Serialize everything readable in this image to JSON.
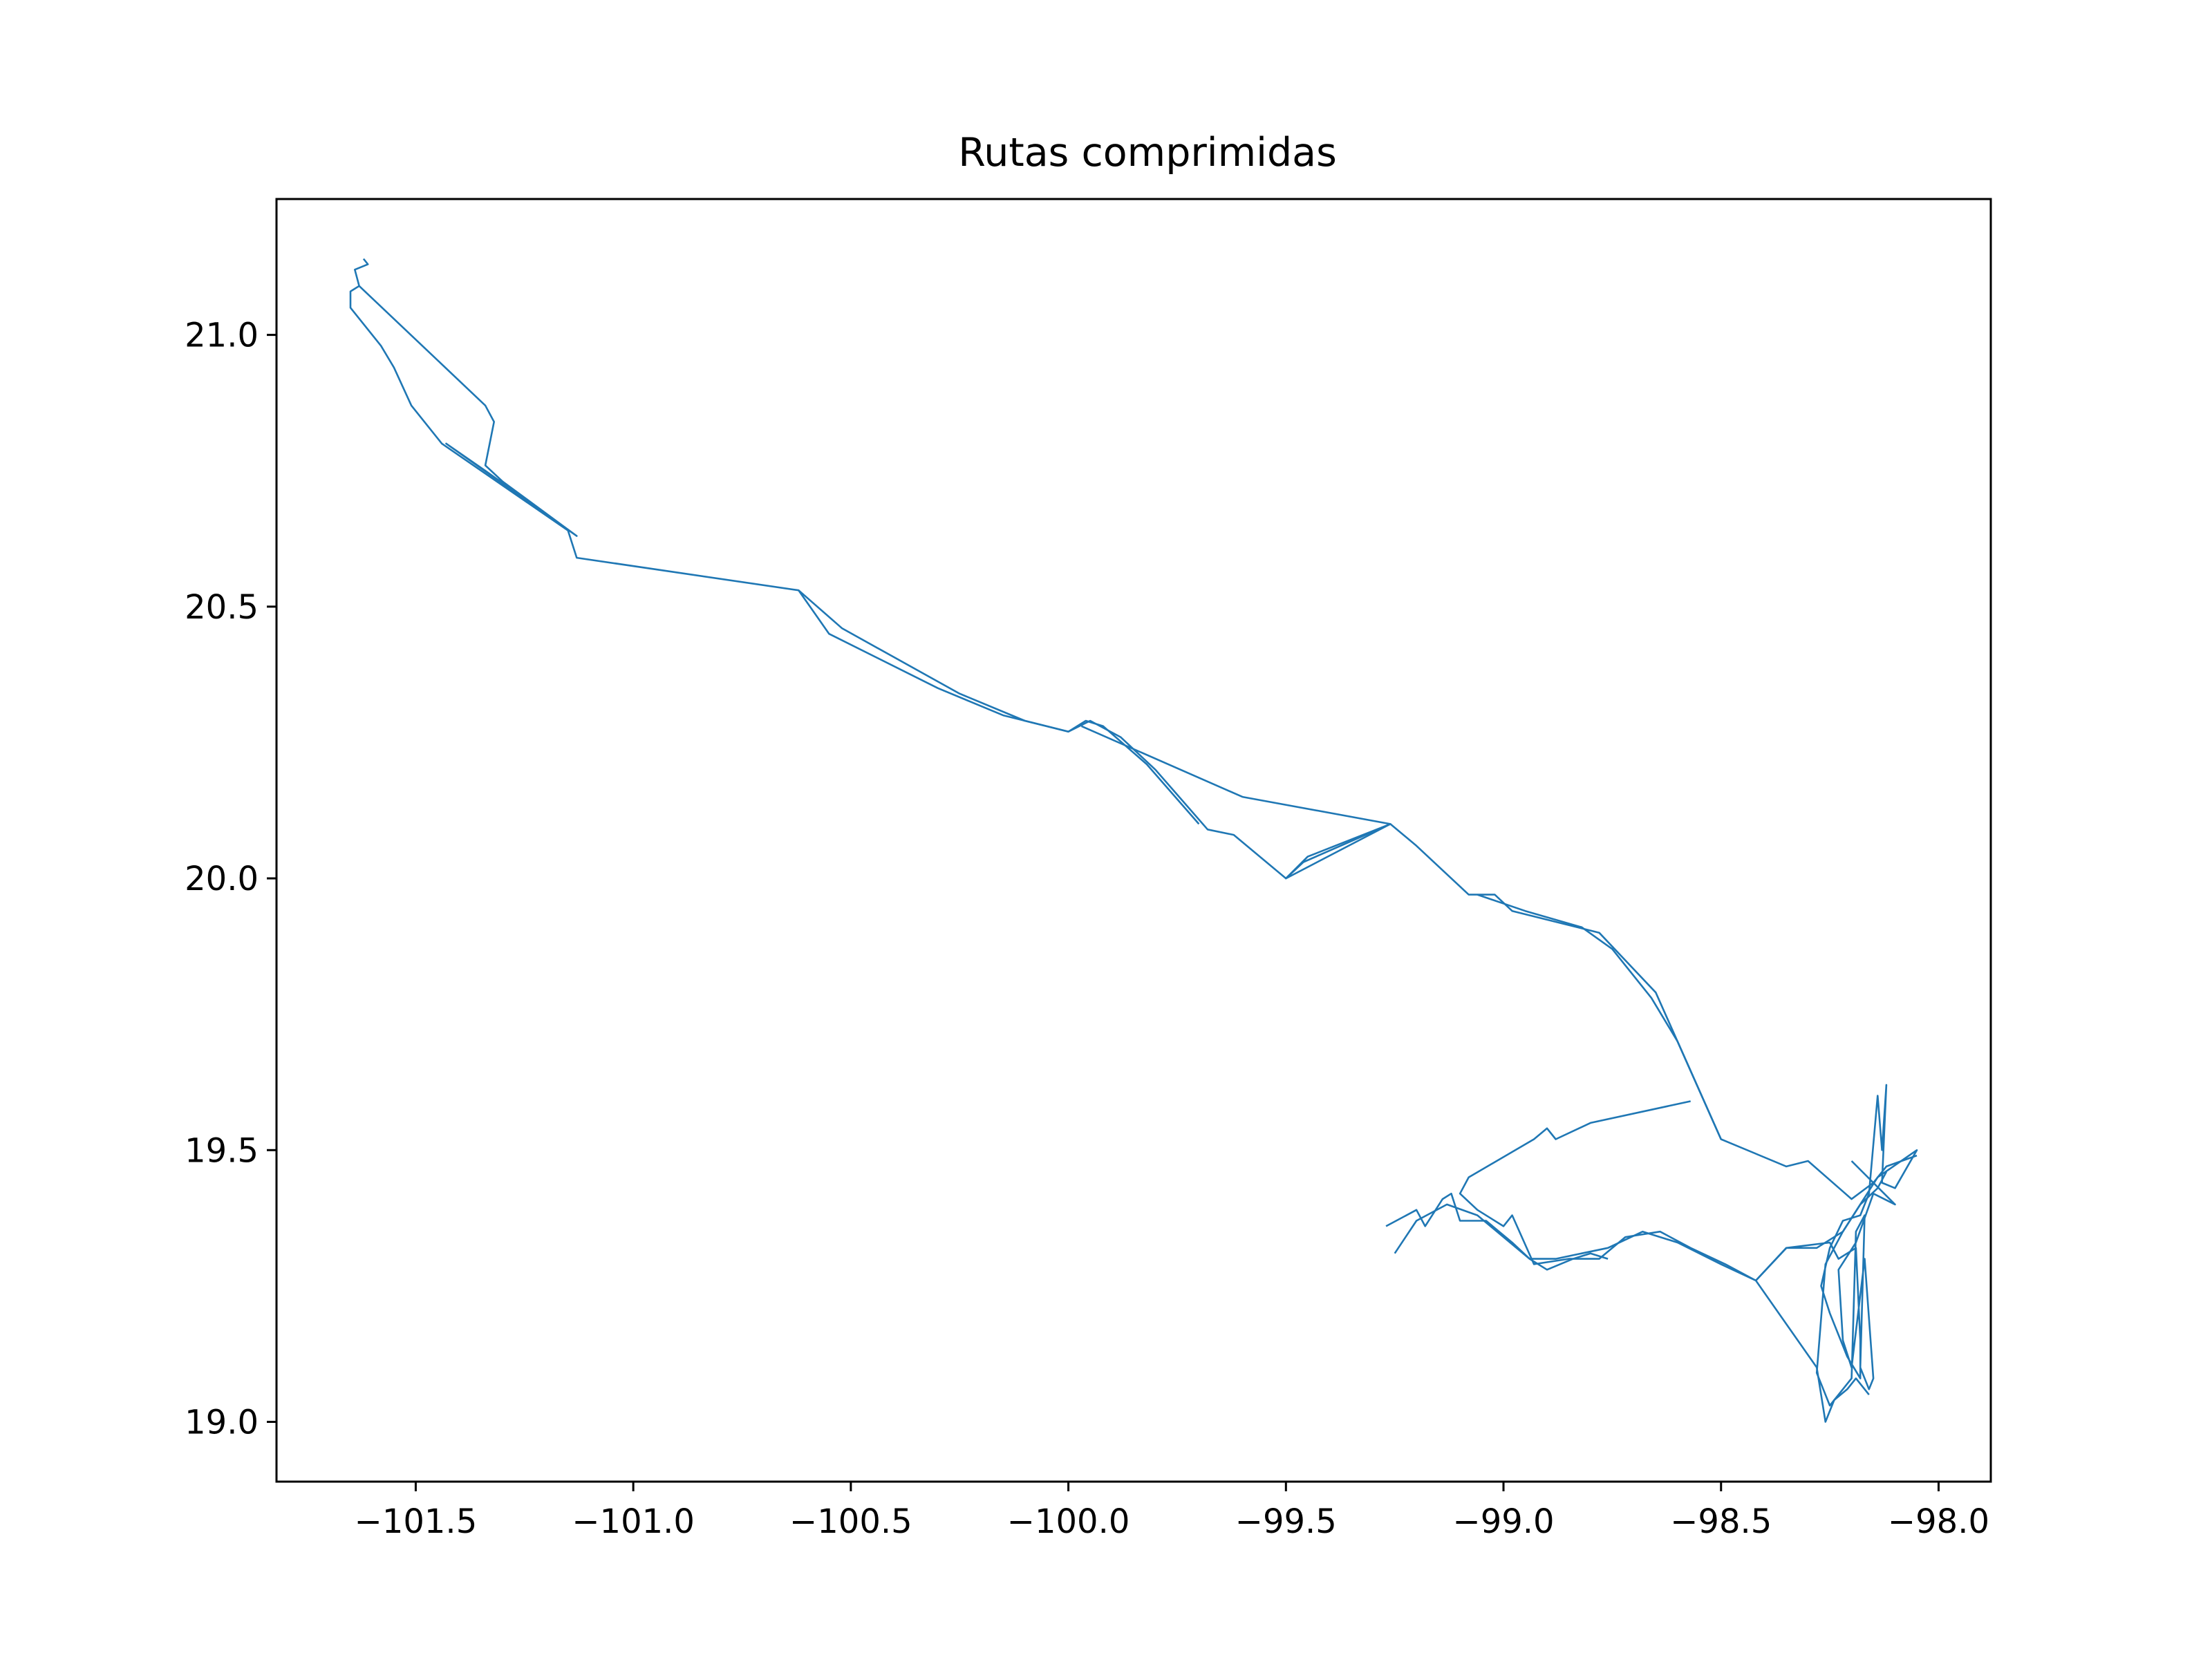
{
  "chart_data": {
    "type": "line",
    "title": "Rutas comprimidas",
    "xlabel": "",
    "ylabel": "",
    "xlim": [
      -101.82,
      -97.88
    ],
    "ylim": [
      18.89,
      21.25
    ],
    "x_ticks": [
      {
        "value": -101.5,
        "label": "−101.5"
      },
      {
        "value": -101.0,
        "label": "−101.0"
      },
      {
        "value": -100.5,
        "label": "−100.5"
      },
      {
        "value": -100.0,
        "label": "−100.0"
      },
      {
        "value": -99.5,
        "label": "−99.5"
      },
      {
        "value": -99.0,
        "label": "−99.0"
      },
      {
        "value": -98.5,
        "label": "−98.5"
      },
      {
        "value": -98.0,
        "label": "−98.0"
      }
    ],
    "y_ticks": [
      {
        "value": 19.0,
        "label": "19.0"
      },
      {
        "value": 19.5,
        "label": "19.5"
      },
      {
        "value": 20.0,
        "label": "20.0"
      },
      {
        "value": 20.5,
        "label": "20.5"
      },
      {
        "value": 21.0,
        "label": "21.0"
      }
    ],
    "grid": false,
    "legend": "none",
    "line_color": "#1f77b4",
    "series": [
      {
        "points": [
          [
            -101.62,
            21.14
          ],
          [
            -101.61,
            21.13
          ],
          [
            -101.64,
            21.12
          ],
          [
            -101.63,
            21.09
          ],
          [
            -101.65,
            21.08
          ],
          [
            -101.65,
            21.05
          ],
          [
            -101.58,
            20.98
          ],
          [
            -101.55,
            20.94
          ],
          [
            -101.51,
            20.87
          ],
          [
            -101.44,
            20.8
          ],
          [
            -101.15,
            20.64
          ],
          [
            -101.13,
            20.59
          ],
          [
            -100.62,
            20.53
          ],
          [
            -100.52,
            20.46
          ],
          [
            -100.25,
            20.34
          ],
          [
            -100.1,
            20.29
          ],
          [
            -100.0,
            20.27
          ],
          [
            -99.95,
            20.29
          ],
          [
            -99.88,
            20.26
          ],
          [
            -99.8,
            20.2
          ],
          [
            -99.68,
            20.09
          ],
          [
            -99.62,
            20.08
          ],
          [
            -99.5,
            20.0
          ],
          [
            -99.46,
            20.03
          ],
          [
            -99.26,
            20.1
          ],
          [
            -99.2,
            20.06
          ],
          [
            -99.08,
            19.97
          ],
          [
            -99.02,
            19.97
          ],
          [
            -98.98,
            19.94
          ],
          [
            -98.78,
            19.9
          ],
          [
            -98.65,
            19.79
          ],
          [
            -98.5,
            19.52
          ],
          [
            -98.35,
            19.47
          ],
          [
            -98.3,
            19.48
          ],
          [
            -98.2,
            19.41
          ],
          [
            -98.15,
            19.44
          ],
          [
            -98.12,
            19.47
          ],
          [
            -98.05,
            19.49
          ]
        ]
      },
      {
        "points": [
          [
            -101.63,
            21.09
          ],
          [
            -101.34,
            20.87
          ],
          [
            -101.32,
            20.84
          ],
          [
            -101.34,
            20.76
          ],
          [
            -101.3,
            20.73
          ],
          [
            -101.13,
            20.63
          ],
          [
            -101.43,
            20.8
          ],
          [
            -101.34,
            20.75
          ],
          [
            -101.13,
            20.63
          ]
        ]
      },
      {
        "points": [
          [
            -100.62,
            20.53
          ],
          [
            -100.55,
            20.45
          ],
          [
            -100.3,
            20.35
          ],
          [
            -100.15,
            20.3
          ],
          [
            -100.0,
            20.27
          ],
          [
            -99.96,
            20.29
          ],
          [
            -99.92,
            20.28
          ],
          [
            -99.82,
            20.21
          ],
          [
            -99.7,
            20.1
          ]
        ]
      },
      {
        "points": [
          [
            -99.97,
            20.28
          ],
          [
            -99.6,
            20.15
          ],
          [
            -99.26,
            20.1
          ],
          [
            -99.5,
            20.0
          ],
          [
            -99.45,
            20.04
          ],
          [
            -99.26,
            20.1
          ]
        ]
      },
      {
        "points": [
          [
            -99.06,
            19.97
          ],
          [
            -98.95,
            19.94
          ],
          [
            -98.82,
            19.91
          ],
          [
            -98.75,
            19.87
          ],
          [
            -98.66,
            19.78
          ],
          [
            -98.6,
            19.7
          ],
          [
            -98.5,
            19.52
          ]
        ]
      },
      {
        "points": [
          [
            -98.57,
            19.59
          ],
          [
            -98.8,
            19.55
          ],
          [
            -98.88,
            19.52
          ],
          [
            -98.9,
            19.54
          ],
          [
            -98.93,
            19.52
          ],
          [
            -99.08,
            19.45
          ],
          [
            -99.1,
            19.42
          ],
          [
            -99.06,
            19.39
          ],
          [
            -99.0,
            19.36
          ],
          [
            -98.98,
            19.38
          ],
          [
            -98.93,
            19.29
          ],
          [
            -98.85,
            19.3
          ],
          [
            -98.78,
            19.3
          ],
          [
            -98.72,
            19.34
          ],
          [
            -98.64,
            19.35
          ],
          [
            -98.57,
            19.32
          ],
          [
            -98.49,
            19.29
          ],
          [
            -98.42,
            19.26
          ],
          [
            -98.35,
            19.32
          ],
          [
            -98.28,
            19.32
          ],
          [
            -98.22,
            19.35
          ],
          [
            -98.18,
            19.4
          ],
          [
            -98.14,
            19.43
          ],
          [
            -98.12,
            19.46
          ]
        ]
      },
      {
        "points": [
          [
            -99.27,
            19.36
          ],
          [
            -99.2,
            19.39
          ],
          [
            -99.18,
            19.36
          ],
          [
            -99.14,
            19.41
          ],
          [
            -99.12,
            19.42
          ],
          [
            -99.1,
            19.37
          ],
          [
            -99.04,
            19.37
          ],
          [
            -98.98,
            19.33
          ],
          [
            -98.94,
            19.3
          ],
          [
            -98.88,
            19.3
          ],
          [
            -98.82,
            19.31
          ],
          [
            -98.76,
            19.32
          ],
          [
            -98.68,
            19.35
          ],
          [
            -98.6,
            19.33
          ],
          [
            -98.5,
            19.29
          ],
          [
            -98.42,
            19.26
          ],
          [
            -98.28,
            19.1
          ],
          [
            -98.26,
            19.0
          ],
          [
            -98.24,
            19.04
          ],
          [
            -98.21,
            19.06
          ],
          [
            -98.19,
            19.08
          ],
          [
            -98.16,
            19.05
          ]
        ]
      },
      {
        "points": [
          [
            -99.25,
            19.31
          ],
          [
            -99.2,
            19.37
          ],
          [
            -99.13,
            19.4
          ],
          [
            -99.06,
            19.38
          ],
          [
            -98.94,
            19.3
          ],
          [
            -98.9,
            19.28
          ],
          [
            -98.84,
            19.3
          ],
          [
            -98.8,
            19.31
          ],
          [
            -98.76,
            19.3
          ]
        ]
      },
      {
        "points": [
          [
            -98.42,
            19.26
          ],
          [
            -98.35,
            19.32
          ],
          [
            -98.25,
            19.33
          ],
          [
            -98.23,
            19.3
          ],
          [
            -98.19,
            19.32
          ],
          [
            -98.18,
            19.15
          ],
          [
            -98.18,
            19.08
          ],
          [
            -98.21,
            19.12
          ],
          [
            -98.25,
            19.2
          ],
          [
            -98.27,
            19.25
          ],
          [
            -98.25,
            19.32
          ],
          [
            -98.22,
            19.37
          ],
          [
            -98.18,
            19.38
          ],
          [
            -98.16,
            19.42
          ],
          [
            -98.14,
            19.6
          ],
          [
            -98.13,
            19.5
          ],
          [
            -98.12,
            19.62
          ],
          [
            -98.13,
            19.44
          ],
          [
            -98.1,
            19.43
          ],
          [
            -98.05,
            19.5
          ],
          [
            -98.14,
            19.45
          ],
          [
            -98.22,
            19.35
          ],
          [
            -98.26,
            19.29
          ],
          [
            -98.28,
            19.09
          ],
          [
            -98.25,
            19.03
          ],
          [
            -98.2,
            19.08
          ],
          [
            -98.19,
            19.35
          ],
          [
            -98.17,
            19.38
          ],
          [
            -98.18,
            19.1
          ],
          [
            -98.16,
            19.06
          ],
          [
            -98.15,
            19.08
          ],
          [
            -98.17,
            19.3
          ],
          [
            -98.2,
            19.1
          ],
          [
            -98.22,
            19.15
          ],
          [
            -98.23,
            19.28
          ],
          [
            -98.19,
            19.33
          ],
          [
            -98.15,
            19.42
          ],
          [
            -98.1,
            19.4
          ],
          [
            -98.2,
            19.48
          ]
        ]
      }
    ]
  }
}
